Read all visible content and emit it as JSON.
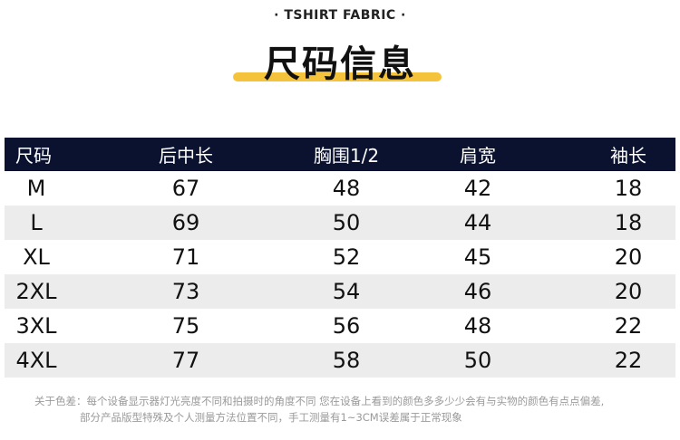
{
  "header": {
    "subtitle": "· TSHIRT FABRIC ·",
    "title": "尺码信息",
    "accent_color": "#f5c33b"
  },
  "table": {
    "header_color": "#0b1230",
    "columns": [
      "尺码",
      "后中长",
      "胸围1/2",
      "肩宽",
      "袖长"
    ],
    "rows": [
      [
        "M",
        "67",
        "48",
        "42",
        "18"
      ],
      [
        "L",
        "69",
        "50",
        "44",
        "18"
      ],
      [
        "XL",
        "71",
        "52",
        "45",
        "20"
      ],
      [
        "2XL",
        "73",
        "54",
        "46",
        "20"
      ],
      [
        "3XL",
        "75",
        "56",
        "48",
        "22"
      ],
      [
        "4XL",
        "77",
        "58",
        "50",
        "22"
      ]
    ]
  },
  "note": {
    "line1": "关于色差：每个设备显示器灯光亮度不同和拍摄时的角度不同 您在设备上看到的颜色多多少少会有与实物的颜色有点点偏差,",
    "line2": "部分产品版型特殊及个人测量方法位置不同，手工测量有1~3CM误差属于正常现象"
  }
}
